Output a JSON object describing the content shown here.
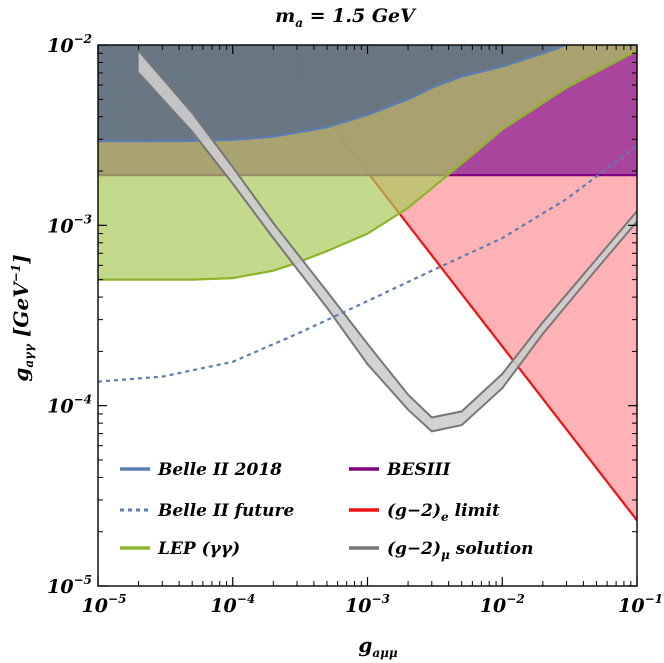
{
  "chart_data": {
    "type": "area",
    "title": "m_a = 1.5 GeV",
    "title_main": "m",
    "title_sub": "a",
    "title_rest": " = 1.5 GeV",
    "xlabel_main": "g",
    "xlabel_sub": "aμμ",
    "ylabel_main": "g",
    "ylabel_sub": "aγγ",
    "ylabel_unit": " [GeV",
    "ylabel_unit_exp": "−1",
    "ylabel_unit_close": "]",
    "x_scale": "log",
    "y_scale": "log",
    "xlim": [
      1e-05,
      0.1
    ],
    "ylim": [
      1e-05,
      0.01
    ],
    "x_ticks": [
      {
        "base": "10",
        "exp": "−5",
        "value": 1e-05
      },
      {
        "base": "10",
        "exp": "−4",
        "value": 0.0001
      },
      {
        "base": "10",
        "exp": "−3",
        "value": 0.001
      },
      {
        "base": "10",
        "exp": "−2",
        "value": 0.01
      },
      {
        "base": "10",
        "exp": "−1",
        "value": 0.1
      }
    ],
    "y_ticks": [
      {
        "base": "10",
        "exp": "−5",
        "value": 1e-05
      },
      {
        "base": "10",
        "exp": "−4",
        "value": 0.0001
      },
      {
        "base": "10",
        "exp": "−3",
        "value": 0.001
      },
      {
        "base": "10",
        "exp": "−2",
        "value": 0.01
      }
    ],
    "series": [
      {
        "name": "Belle II 2018",
        "style": "filled-above",
        "color": "#5B7DB1",
        "fill": "#5E6F86",
        "fill_opacity": 0.85,
        "x": [
          1e-05,
          2e-05,
          5e-05,
          0.0001,
          0.0002,
          0.0005,
          0.001,
          0.002,
          0.003,
          0.005,
          0.01,
          0.02,
          0.03
        ],
        "y": [
          0.00293,
          0.00293,
          0.00294,
          0.00298,
          0.0031,
          0.0035,
          0.0041,
          0.005,
          0.0058,
          0.0067,
          0.0076,
          0.009,
          0.01
        ]
      },
      {
        "name": "LEP (γγ)",
        "style": "filled-above",
        "color": "#8DB52A",
        "fill": "#A9C95B",
        "fill_opacity": 0.7,
        "x": [
          1e-05,
          2e-05,
          5e-05,
          0.0001,
          0.0002,
          0.0003,
          0.0005,
          0.001,
          0.002,
          0.005,
          0.01,
          0.03,
          0.1
        ],
        "y": [
          0.0005,
          0.0005,
          0.0005,
          0.00051,
          0.00056,
          0.00062,
          0.00072,
          0.0009,
          0.00125,
          0.0022,
          0.0034,
          0.0058,
          0.0093
        ]
      },
      {
        "name": "BESIII",
        "style": "filled-above",
        "color": "#800080",
        "fill": "#A0389A",
        "fill_opacity": 0.9,
        "x": [
          1e-05,
          0.1
        ],
        "y": [
          0.0019,
          0.0019
        ]
      },
      {
        "name": "(g−2)e limit",
        "style": "filled-above",
        "color": "#EE1111",
        "fill": "#FFA5A8",
        "fill_opacity": 0.85,
        "x": [
          0.0003,
          0.1
        ],
        "y": [
          0.0063,
          2.31e-05
        ]
      },
      {
        "name": "Belle II future",
        "style": "dotted",
        "color": "#5B7DB1",
        "x": [
          1e-05,
          3e-05,
          0.0001,
          0.0003,
          0.001,
          0.003,
          0.01,
          0.03,
          0.1
        ],
        "y": [
          0.000136,
          0.000145,
          0.000175,
          0.00025,
          0.00038,
          0.00056,
          0.00085,
          0.0014,
          0.00275
        ]
      },
      {
        "name": "(g−2)μ solution",
        "style": "band",
        "color": "#777777",
        "fill": "#CDCDCD",
        "fill_opacity": 0.9,
        "x": [
          2e-05,
          5e-05,
          0.0001,
          0.0002,
          0.0005,
          0.001,
          0.002,
          0.003,
          0.005,
          0.01,
          0.02,
          0.05,
          0.1
        ],
        "y_low": [
          0.007,
          0.0033,
          0.0017,
          0.00085,
          0.00035,
          0.00017,
          9.5e-05,
          7.2e-05,
          7.8e-05,
          0.000125,
          0.00025,
          0.00057,
          0.00105
        ],
        "y_high": [
          0.0093,
          0.0042,
          0.0021,
          0.00103,
          0.00043,
          0.00022,
          0.000115,
          8.6e-05,
          9.3e-05,
          0.00015,
          0.00029,
          0.00065,
          0.0012
        ]
      }
    ],
    "legend": [
      {
        "label": "Belle II 2018",
        "color": "#5B7DB1",
        "style": "solid"
      },
      {
        "label": "BESIII",
        "color": "#800080",
        "style": "solid"
      },
      {
        "label": "Belle II  future",
        "color": "#5B7DB1",
        "style": "dotted"
      },
      {
        "label": "(g−2)",
        "sub": "e",
        "rest": " limit",
        "color": "#EE1111",
        "style": "solid"
      },
      {
        "label": "LEP (γγ)",
        "color": "#8DB52A",
        "style": "solid"
      },
      {
        "label": "(g−2)",
        "sub": "μ",
        "rest": " solution",
        "color": "#777777",
        "style": "solid"
      }
    ],
    "legend_position": "bottom-left"
  }
}
